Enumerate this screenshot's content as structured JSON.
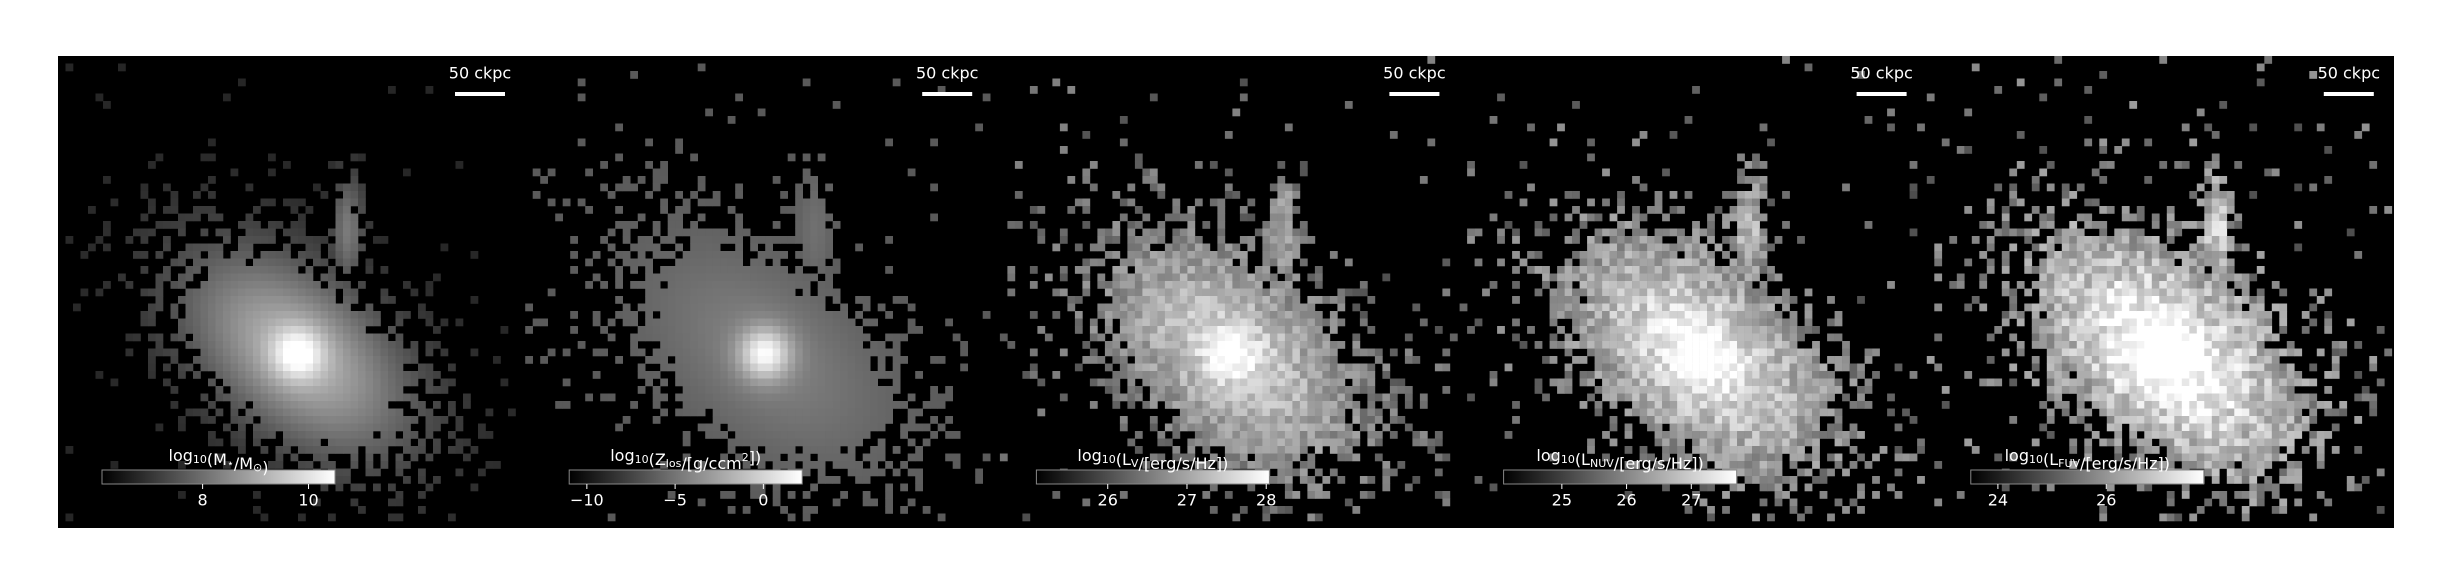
{
  "chart_data": [
    {
      "type": "image",
      "scale_bar_label": "50 ckpc",
      "colorbar_label": [
        "log",
        {
          "sub": "10"
        },
        "(M",
        {
          "sub": "⋆"
        },
        "/M",
        {
          "sub": "⊙"
        },
        ")"
      ],
      "clim": [
        6.1,
        10.5
      ],
      "cticks": [
        8,
        10
      ]
    },
    {
      "type": "image",
      "scale_bar_label": "50 ckpc",
      "colorbar_label": [
        "log",
        {
          "sub": "10"
        },
        "(Z",
        {
          "sub": "los"
        },
        "/[g/ccm",
        {
          "sup": "2"
        },
        "])"
      ],
      "clim": [
        -11,
        2.2
      ],
      "cticks": [
        {
          "value": -10,
          "label": "−10"
        },
        {
          "value": -5,
          "label": "−5"
        },
        0
      ]
    },
    {
      "type": "image",
      "scale_bar_label": "50 ckpc",
      "colorbar_label": [
        "log",
        {
          "sub": "10"
        },
        "(L",
        {
          "sub": "V"
        },
        "/[erg/s/Hz])"
      ],
      "clim": [
        25.1,
        28.04
      ],
      "cticks": [
        26,
        27,
        28
      ]
    },
    {
      "type": "image",
      "scale_bar_label": "50 ckpc",
      "colorbar_label": [
        "log",
        {
          "sub": "10"
        },
        "(L",
        {
          "sub": "NUV"
        },
        "/[erg/s/Hz])"
      ],
      "clim": [
        24.1,
        27.7
      ],
      "cticks": [
        25,
        26,
        27
      ]
    },
    {
      "type": "image",
      "scale_bar_label": "50 ckpc",
      "colorbar_label": [
        "log",
        {
          "sub": "10"
        },
        "(L",
        {
          "sub": "FUV"
        },
        "/[erg/s/Hz])"
      ],
      "clim": [
        23.5,
        27.8
      ],
      "cticks": [
        24,
        26
      ]
    }
  ]
}
